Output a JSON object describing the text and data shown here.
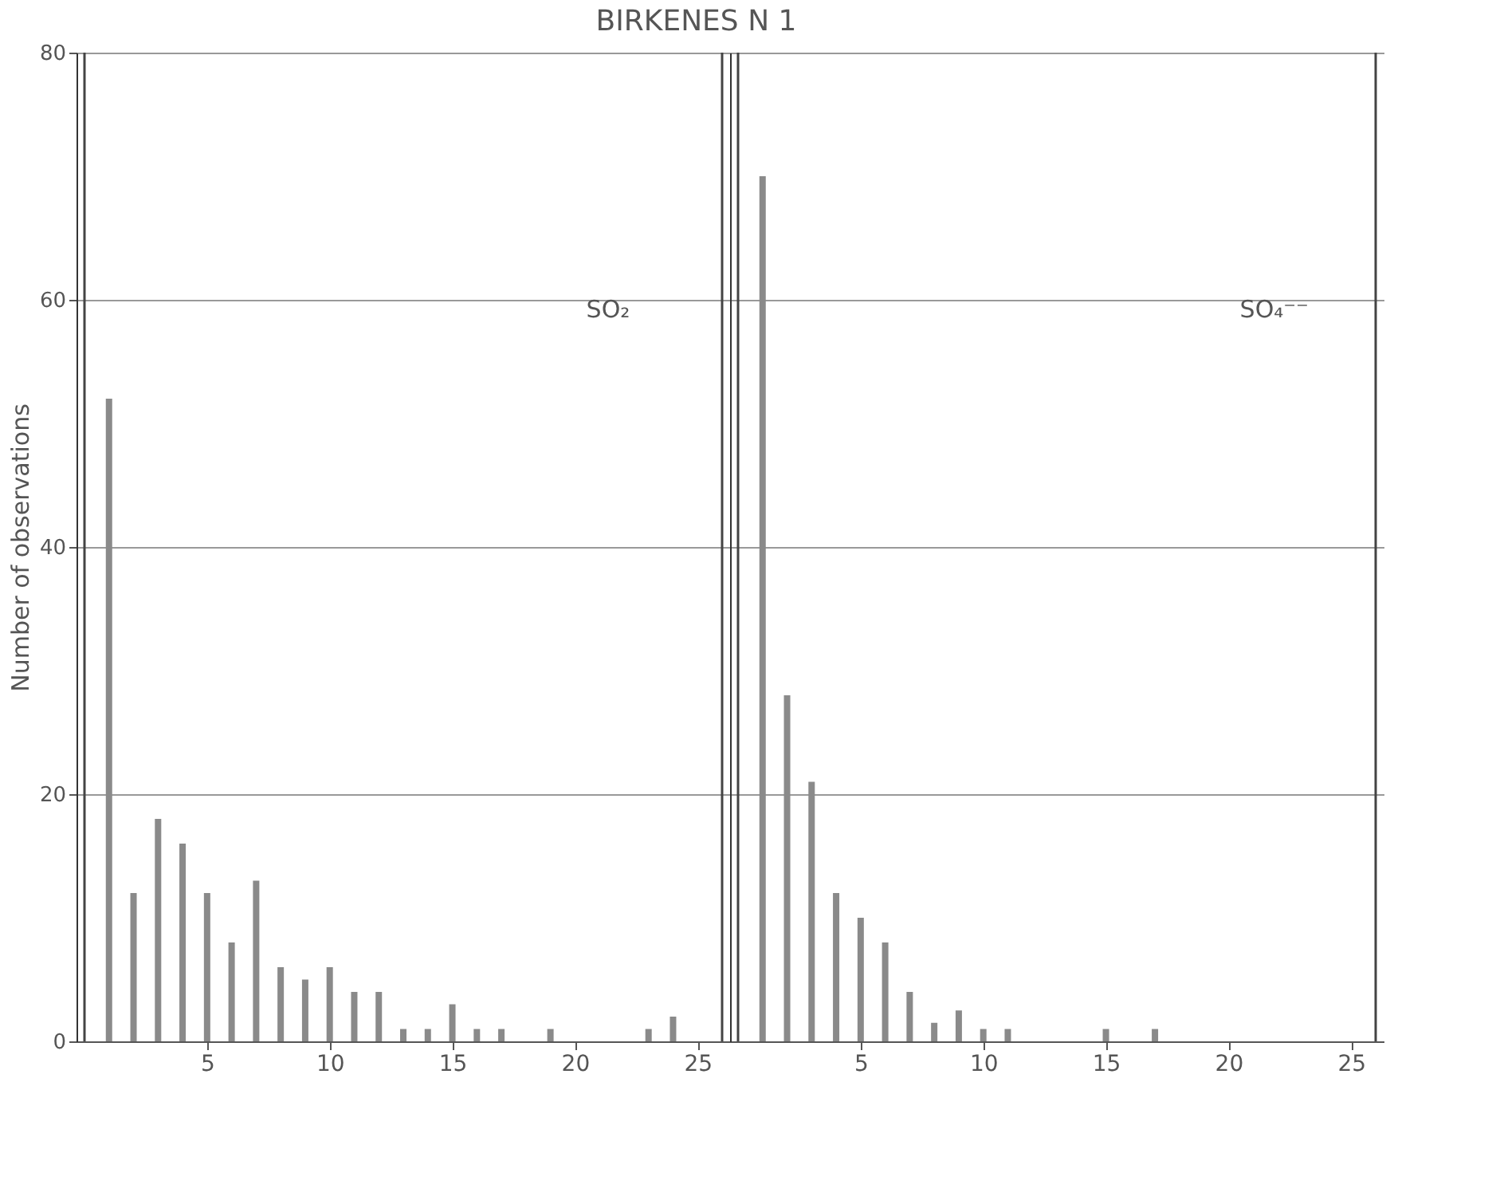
{
  "chart_data": [
    {
      "type": "bar",
      "title": "BIRKENES N 1",
      "ylabel": "Number of observations",
      "annotations": [
        "SO₂"
      ],
      "x": [
        1,
        2,
        3,
        4,
        5,
        6,
        7,
        8,
        9,
        10,
        11,
        12,
        13,
        14,
        15,
        16,
        17,
        18,
        19,
        20,
        21,
        22,
        23,
        24,
        25
      ],
      "values": [
        52,
        12,
        18,
        16,
        12,
        8,
        13,
        6,
        5,
        6,
        4,
        4,
        1,
        1,
        3,
        1,
        1,
        0,
        1,
        0,
        0,
        0,
        1,
        2,
        0
      ],
      "color": "#8a8a8a",
      "xlim": [
        0,
        26
      ],
      "xticks": [
        5,
        10,
        15,
        20,
        25
      ],
      "ylim": [
        0,
        80
      ],
      "yticks": [
        0,
        20,
        40,
        60,
        80
      ],
      "grid": "y"
    },
    {
      "type": "bar",
      "annotations": [
        "SO₄⁻⁻"
      ],
      "x": [
        1,
        2,
        3,
        4,
        5,
        6,
        7,
        8,
        9,
        10,
        11,
        12,
        13,
        14,
        15,
        16,
        17,
        18,
        19,
        20,
        21,
        22,
        23,
        24,
        25
      ],
      "values": [
        70,
        28,
        21,
        12,
        10,
        8,
        4,
        1.5,
        2.5,
        1,
        1,
        0,
        0,
        0,
        1,
        0,
        1,
        0,
        0,
        0,
        0,
        0,
        0,
        0,
        0
      ],
      "color": "#8a8a8a",
      "xlim": [
        0,
        26
      ],
      "xticks": [
        5,
        10,
        15,
        20,
        25
      ],
      "ylim": [
        0,
        80
      ],
      "yticks": [
        0,
        20,
        40,
        60,
        80
      ],
      "grid": "y",
      "tick_labels": "x"
    }
  ]
}
